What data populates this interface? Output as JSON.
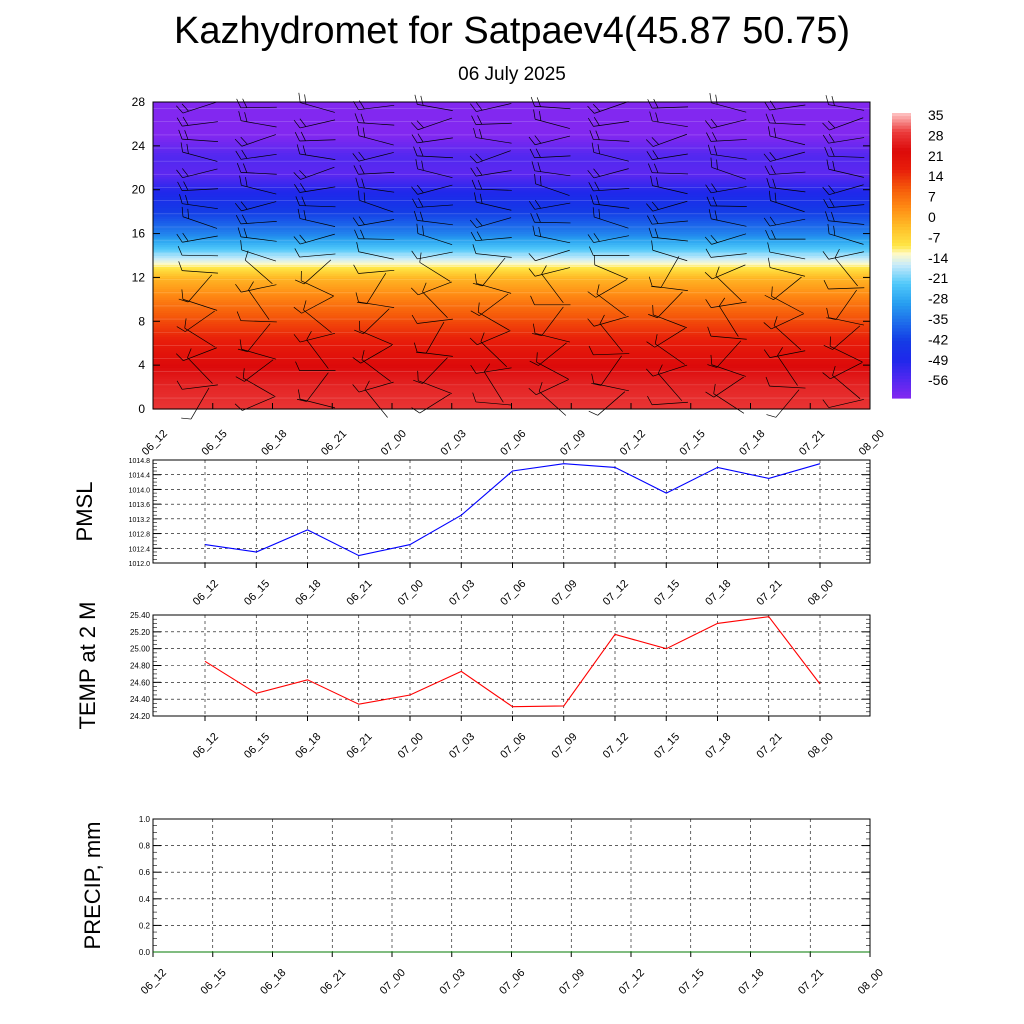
{
  "header": {
    "title": "Kazhydromet for Satpaev4(45.87 50.75)",
    "subtitle": "06 July 2025"
  },
  "colors": {
    "pmsl_line": "#0000ff",
    "temp_line": "#ff0000",
    "precip_line": "#007a00",
    "barb": "#000000"
  },
  "chart_data": [
    {
      "type": "heatmap",
      "name": "vertical-section",
      "x_ticks": [
        "06_12",
        "06_15",
        "06_18",
        "06_21",
        "07_00",
        "07_03",
        "07_06",
        "07_09",
        "07_12",
        "07_15",
        "07_18",
        "07_21",
        "08_00"
      ],
      "y_ticks": [
        0,
        4,
        8,
        12,
        16,
        20,
        24,
        28
      ],
      "ylim": [
        0,
        28
      ],
      "colorbar_labels": [
        "35",
        "28",
        "21",
        "14",
        "7",
        "0",
        "-7",
        "-14",
        "-21",
        "-28",
        "-35",
        "-42",
        "-49",
        "-56"
      ],
      "colorbar_range": [
        -63,
        42
      ],
      "profile_heights": [
        0,
        2,
        4,
        6,
        8,
        10,
        12,
        13.5,
        14.5,
        16,
        18,
        20,
        21.5,
        23,
        25,
        28
      ],
      "profile_temps": [
        34,
        32,
        28,
        22,
        16,
        9,
        1,
        -12,
        -20,
        -32,
        -42,
        -50,
        -58,
        -56,
        -63,
        -63
      ],
      "barb_columns": 12,
      "barb_rows": [
        0.5,
        2,
        3.5,
        5,
        6.5,
        8,
        9.5,
        11,
        12.5,
        14,
        15.5,
        17,
        18.5,
        20,
        21.5,
        23,
        24.5,
        26,
        27.5
      ]
    },
    {
      "type": "line",
      "ylabel": "PMSL",
      "categories": [
        "06_12",
        "06_15",
        "06_18",
        "06_21",
        "07_00",
        "07_03",
        "07_06",
        "07_09",
        "07_12",
        "07_15",
        "07_18",
        "07_21",
        "08_00"
      ],
      "series": [
        {
          "values": [
            1012.5,
            1012.3,
            1012.9,
            1012.2,
            1012.5,
            1013.3,
            1014.5,
            1014.7,
            1014.6,
            1013.9,
            1014.6,
            1014.3,
            1014.7
          ]
        }
      ],
      "ylim": [
        1012.0,
        1014.8
      ],
      "y_ticks": [
        "1012.0",
        "1012.4",
        "1012.8",
        "1013.2",
        "1013.6",
        "1014.0",
        "1014.4",
        "1014.8"
      ],
      "grid": true
    },
    {
      "type": "line",
      "ylabel": "TEMP at 2 M",
      "categories": [
        "06_12",
        "06_15",
        "06_18",
        "06_21",
        "07_00",
        "07_03",
        "07_06",
        "07_09",
        "07_12",
        "07_15",
        "07_18",
        "07_21",
        "08_00"
      ],
      "series": [
        {
          "values": [
            24.85,
            24.47,
            24.63,
            24.34,
            24.45,
            24.73,
            24.31,
            24.32,
            25.17,
            25.0,
            25.3,
            25.38,
            24.58
          ]
        }
      ],
      "ylim": [
        24.2,
        25.4
      ],
      "y_ticks": [
        "24.20",
        "24.40",
        "24.60",
        "24.80",
        "25.00",
        "25.20",
        "25.40"
      ],
      "grid": true
    },
    {
      "type": "line",
      "ylabel": "PRECIP, mm",
      "categories": [
        "06_12",
        "06_15",
        "06_18",
        "06_21",
        "07_00",
        "07_03",
        "07_06",
        "07_09",
        "07_12",
        "07_15",
        "07_18",
        "07_21",
        "08_00"
      ],
      "series": [
        {
          "values": [
            0,
            0,
            0,
            0,
            0,
            0,
            0,
            0,
            0,
            0,
            0,
            0,
            0
          ]
        }
      ],
      "ylim": [
        0,
        1.0
      ],
      "y_ticks": [
        "0.0",
        "0.2",
        "0.4",
        "0.6",
        "0.8",
        "1.0"
      ],
      "grid": true
    }
  ]
}
